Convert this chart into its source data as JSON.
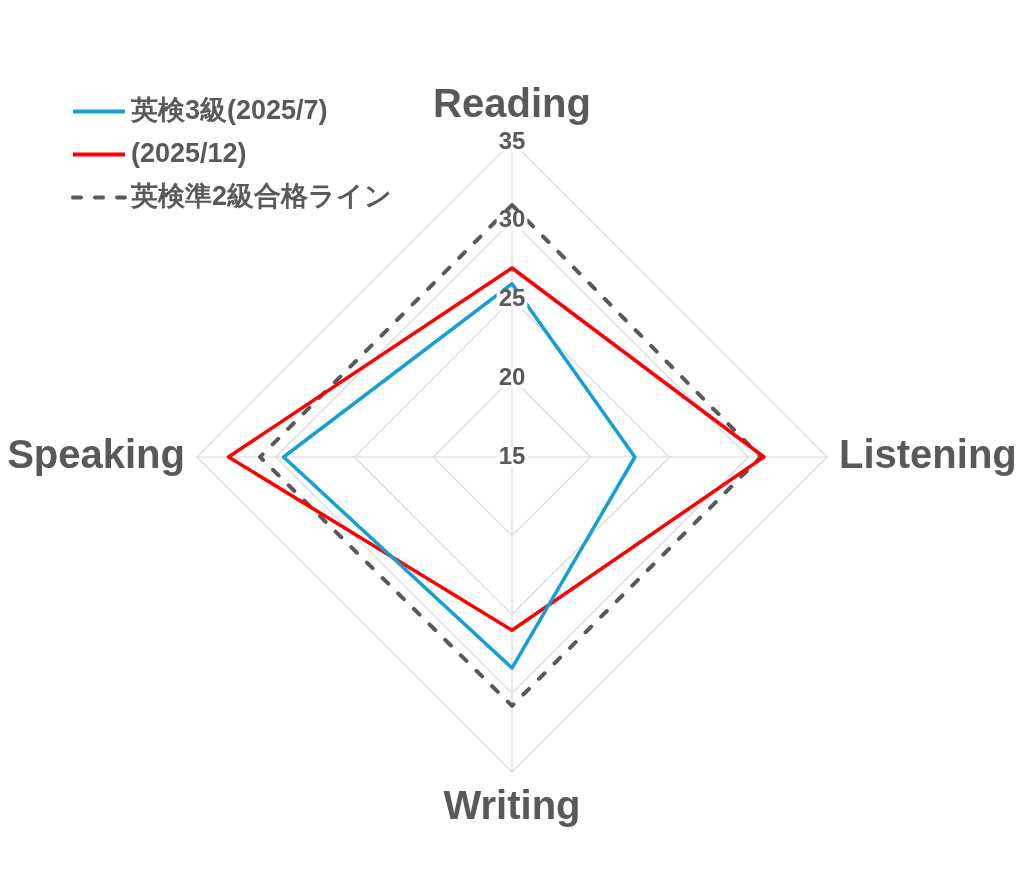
{
  "chart_data": {
    "type": "radar",
    "categories": [
      "Reading",
      "Listening",
      "Writing",
      "Speaking"
    ],
    "series": [
      {
        "name": "英検3級(2025/7)",
        "color": "#14a0d6",
        "values": [
          26,
          22.8,
          28.4,
          29.5
        ]
      },
      {
        "name": "(2025/12)",
        "color": "#ff0000",
        "values": [
          27,
          31,
          26,
          33
        ]
      },
      {
        "name": "英検準2級合格ライン",
        "color": "#595959",
        "values": [
          31,
          30.8,
          30.8,
          31
        ],
        "line_style": "dashed"
      }
    ],
    "ylim": [
      15,
      35
    ],
    "yticks": [
      15,
      20,
      25,
      30,
      35
    ],
    "grid": true,
    "legend": "top left",
    "marker": "none"
  }
}
